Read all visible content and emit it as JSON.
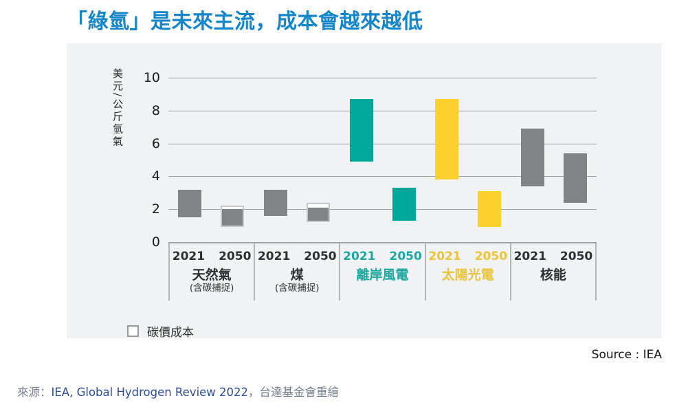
{
  "title": "「綠氫」是未來主流，成本會越來越低",
  "colors": {
    "title_blue": "#1486C9",
    "panel_bg": "#F0F2F4",
    "grid": "#9B9DA0",
    "separator": "#B3B5B8",
    "baseline": "#A0A2A5",
    "carbon_border": "#C6C8CA",
    "carbon_fill": "#FFFFFF",
    "dark_text": "#2F2F2F",
    "caption_gray": "#75808F",
    "caption_navy": "#2E4D9C",
    "source_text": "#141414"
  },
  "chart_data": {
    "type": "bar",
    "subtype": "floating-range-bars",
    "title": "「綠氫」是未來主流，成本會越來越低",
    "ylabel": "美元/公斤氫氣",
    "ylim": [
      0,
      10
    ],
    "yticks": [
      0,
      2,
      4,
      6,
      8,
      10
    ],
    "grid": true,
    "legend": {
      "carbon_label": "碳價成本",
      "position": "bottom-left"
    },
    "note": "values are cost ranges in USD per kg hydrogen; carbon_top marks the top of the white carbon-price segment on 2050 fossil bars",
    "groups": [
      {
        "name": "天然氣",
        "sub": "(含碳捕捉)",
        "bar_color": "#818387",
        "label_color": "#2F2F2F",
        "bars": [
          {
            "year": "2021",
            "min": 1.5,
            "max": 3.2
          },
          {
            "year": "2050",
            "min": 0.9,
            "max": 2.0,
            "carbon_top": 2.2
          }
        ]
      },
      {
        "name": "煤",
        "sub": "(含碳捕捉)",
        "bar_color": "#818387",
        "label_color": "#2F2F2F",
        "bars": [
          {
            "year": "2021",
            "min": 1.6,
            "max": 3.2
          },
          {
            "year": "2050",
            "min": 1.2,
            "max": 2.1,
            "carbon_top": 2.4
          }
        ]
      },
      {
        "name": "離岸風電",
        "sub": "",
        "bar_color": "#00A89C",
        "label_color": "#1CA89F",
        "bars": [
          {
            "year": "2021",
            "min": 4.9,
            "max": 8.7
          },
          {
            "year": "2050",
            "min": 1.3,
            "max": 3.3
          }
        ]
      },
      {
        "name": "太陽光電",
        "sub": "",
        "bar_color": "#FCD12D",
        "label_color": "#E9C43C",
        "bars": [
          {
            "year": "2021",
            "min": 3.8,
            "max": 8.7
          },
          {
            "year": "2050",
            "min": 0.9,
            "max": 3.1
          }
        ]
      },
      {
        "name": "核能",
        "sub": "",
        "bar_color": "#818387",
        "label_color": "#2F2F2F",
        "bars": [
          {
            "year": "2021",
            "min": 3.4,
            "max": 6.9
          },
          {
            "year": "2050",
            "min": 2.4,
            "max": 5.4
          }
        ]
      }
    ]
  },
  "source_note": "Source : IEA",
  "caption": {
    "prefix": "來源：",
    "source": "IEA, Global Hydrogen Review 2022",
    "suffix": "，台達基金會重繪"
  }
}
